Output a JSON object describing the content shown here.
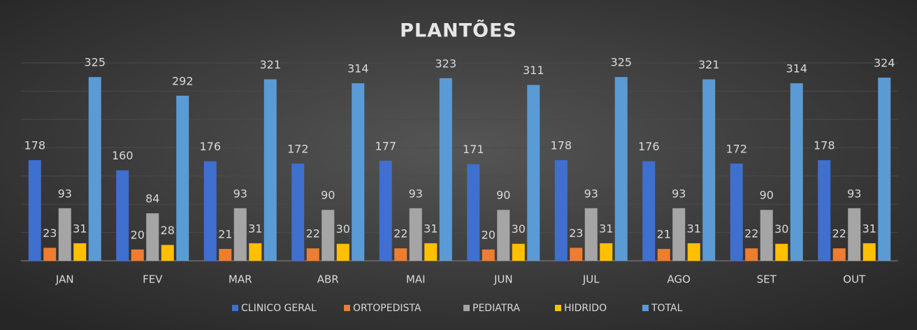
{
  "chart_data": {
    "type": "bar",
    "title": "PLANTÕES",
    "categories": [
      "JAN",
      "FEV",
      "MAR",
      "ABR",
      "MAI",
      "JUN",
      "JUL",
      "AGO",
      "SET",
      "OUT"
    ],
    "series": [
      {
        "name": "CLINICO GERAL",
        "color": "#3f6fcf",
        "values": [
          178,
          160,
          176,
          172,
          177,
          171,
          178,
          176,
          172,
          178
        ]
      },
      {
        "name": "ORTOPEDISTA",
        "color": "#ed7d31",
        "values": [
          23,
          20,
          21,
          22,
          22,
          20,
          23,
          21,
          22,
          22
        ]
      },
      {
        "name": "PEDIATRA",
        "color": "#a5a5a5",
        "values": [
          93,
          84,
          93,
          90,
          93,
          90,
          93,
          93,
          90,
          93
        ]
      },
      {
        "name": "HIDRIDO",
        "color": "#ffc000",
        "values": [
          31,
          28,
          31,
          30,
          31,
          30,
          31,
          31,
          30,
          31
        ]
      },
      {
        "name": "TOTAL",
        "color": "#5b9bd5",
        "values": [
          325,
          292,
          321,
          314,
          323,
          311,
          325,
          321,
          314,
          324
        ]
      }
    ],
    "ylim": [
      0,
      350
    ],
    "yticks": [
      0,
      50,
      100,
      150,
      200,
      250,
      300,
      350
    ],
    "grid": true,
    "legend": "bottom"
  }
}
